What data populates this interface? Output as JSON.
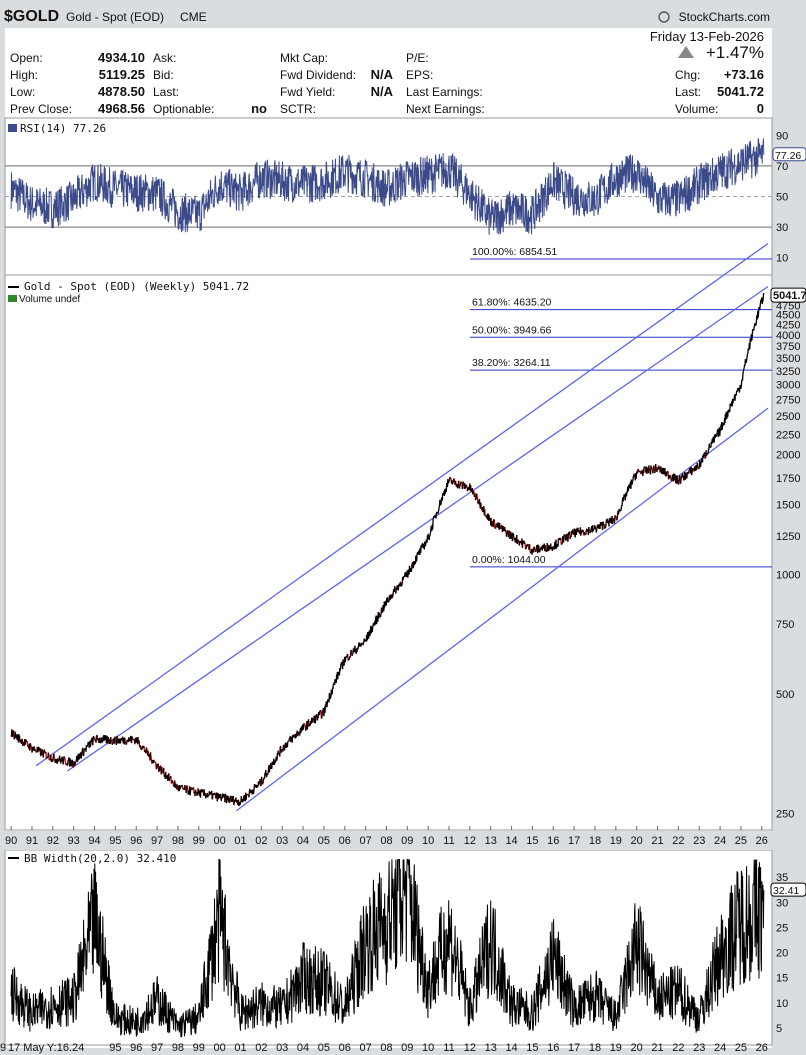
{
  "header": {
    "symbol": "$GOLD",
    "name": "Gold - Spot (EOD)",
    "exchange": "CME",
    "brand": "StockCharts.com",
    "date": "Friday 13-Feb-2026",
    "pct_change": "+1.47%",
    "chg_label": "Chg:",
    "chg_value": "+73.16",
    "last_label": "Last:",
    "last_value": "5041.72",
    "volume_label": "Volume:",
    "volume_value": "0",
    "stats": {
      "open_label": "Open:",
      "open": "4934.10",
      "high_label": "High:",
      "high": "5119.25",
      "low_label": "Low:",
      "low": "4878.50",
      "prev_label": "Prev Close:",
      "prev": "4968.56",
      "ask_label": "Ask:",
      "bid_label": "Bid:",
      "last2_label": "Last:",
      "optionable_label": "Optionable:",
      "optionable": "no",
      "mktcap_label": "Mkt Cap:",
      "fwd_div_label": "Fwd Dividend:",
      "fwd_div": "N/A",
      "fwd_yield_label": "Fwd Yield:",
      "fwd_yield": "N/A",
      "sctr_label": "SCTR:",
      "pe_label": "P/E:",
      "eps_label": "EPS:",
      "last_earn_label": "Last Earnings:",
      "next_earn_label": "Next Earnings:"
    }
  },
  "colors": {
    "price_up": "#000000",
    "price_down": "#cc0000",
    "channel": "#5a66ee",
    "fib": "#2a35c9",
    "indicator": "#3b4a8a",
    "panel_bg": "#ffffff",
    "frame": "#d9dde0"
  },
  "chart_data": [
    {
      "type": "line",
      "title": "RSI(14) 77.26",
      "current": 77.26,
      "ylim": [
        0,
        100
      ],
      "y_ticks": [
        10,
        30,
        50,
        70,
        90
      ],
      "reference_lines": [
        70,
        50,
        30
      ],
      "x": [
        1990,
        1991,
        1992,
        1993,
        1994,
        1995,
        1996,
        1997,
        1998,
        1999,
        2000,
        2001,
        2002,
        2003,
        2004,
        2005,
        2006,
        2007,
        2008,
        2009,
        2010,
        2011,
        2012,
        2013,
        2014,
        2015,
        2016,
        2017,
        2018,
        2019,
        2020,
        2021,
        2022,
        2023,
        2024,
        2025,
        2026.1
      ],
      "values": [
        55,
        45,
        42,
        48,
        60,
        55,
        53,
        52,
        40,
        38,
        58,
        52,
        62,
        60,
        58,
        60,
        66,
        62,
        55,
        62,
        64,
        68,
        52,
        35,
        42,
        38,
        60,
        50,
        48,
        62,
        66,
        48,
        48,
        58,
        66,
        72,
        77.26
      ]
    },
    {
      "type": "line",
      "title": "Gold - Spot (EOD) (Weekly) 5041.72",
      "legend": [
        "Gold - Spot (EOD) (Weekly) 5041.72",
        "Volume undef"
      ],
      "scale": "log",
      "ylim": [
        230,
        5600
      ],
      "y_ticks": [
        250,
        500,
        750,
        1000,
        1250,
        1500,
        1750,
        2000,
        2250,
        2500,
        2750,
        3000,
        3250,
        3500,
        3750,
        4000,
        4250,
        4500,
        4750
      ],
      "last": 5041.72,
      "x_ticks": [
        "90",
        "91",
        "92",
        "93",
        "94",
        "95",
        "96",
        "97",
        "98",
        "99",
        "00",
        "01",
        "02",
        "03",
        "04",
        "05",
        "06",
        "07",
        "08",
        "09",
        "10",
        "11",
        "12",
        "13",
        "14",
        "15",
        "16",
        "17",
        "18",
        "19",
        "20",
        "21",
        "22",
        "23",
        "24",
        "25",
        "26"
      ],
      "x": [
        1990,
        1991,
        1992,
        1993,
        1994,
        1995,
        1996,
        1997,
        1998,
        1999,
        2000,
        2001,
        2002,
        2003,
        2004,
        2005,
        2006,
        2007,
        2008,
        2009,
        2010,
        2011,
        2012,
        2013,
        2014,
        2015,
        2016,
        2017,
        2018,
        2019,
        2020,
        2021,
        2022,
        2023,
        2024,
        2025,
        2026.1
      ],
      "series": [
        {
          "values": [
            400,
            365,
            345,
            335,
            385,
            382,
            384,
            330,
            290,
            282,
            275,
            268,
            300,
            365,
            410,
            450,
            610,
            680,
            850,
            1000,
            1230,
            1720,
            1650,
            1360,
            1250,
            1150,
            1180,
            1270,
            1300,
            1380,
            1800,
            1850,
            1720,
            1880,
            2300,
            3000,
            5041.72
          ]
        }
      ],
      "fib_levels": [
        {
          "label": "100.00%: 6854.51",
          "value": 6854.51
        },
        {
          "label": "61.80%: 4635.20",
          "value": 4635.2
        },
        {
          "label": "50.00%: 3949.66",
          "value": 3949.66
        },
        {
          "label": "38.20%: 3264.11",
          "value": 3264.11
        },
        {
          "label": "0.00%: 1044.00",
          "value": 1044.0
        }
      ],
      "channels": [
        {
          "points": [
            [
              1991.2,
              330
            ],
            [
              2026.3,
              6800
            ]
          ]
        },
        {
          "points": [
            [
              1992.7,
              320
            ],
            [
              2026.3,
              5300
            ]
          ]
        },
        {
          "points": [
            [
              2000.8,
              254
            ],
            [
              2026.3,
              2620
            ]
          ]
        }
      ]
    },
    {
      "type": "line",
      "title": "BB Width(20,2.0) 32.410",
      "current": 32.41,
      "ylim": [
        2,
        40
      ],
      "y_ticks": [
        5,
        10,
        15,
        20,
        25,
        30,
        35
      ],
      "x_ticks": [
        "9",
        "17 May Y:16.24",
        "95",
        "96",
        "97",
        "98",
        "99",
        "00",
        "01",
        "02",
        "03",
        "04",
        "05",
        "06",
        "07",
        "08",
        "09",
        "10",
        "11",
        "12",
        "13",
        "14",
        "15",
        "16",
        "17",
        "18",
        "19",
        "20",
        "21",
        "22",
        "23",
        "24",
        "25",
        "26"
      ],
      "x": [
        1990,
        1991,
        1992,
        1993,
        1994,
        1995,
        1996,
        1997,
        1998,
        1999,
        2000,
        2001,
        2002,
        2003,
        2004,
        2005,
        2006,
        2007,
        2008,
        2009,
        2010,
        2011,
        2012,
        2013,
        2014,
        2015,
        2016,
        2017,
        2018,
        2019,
        2020,
        2021,
        2022,
        2023,
        2024,
        2025,
        2026.1
      ],
      "values": [
        14,
        9,
        11,
        12,
        30,
        8,
        7,
        12,
        6,
        8,
        31,
        9,
        11,
        10,
        17,
        16,
        10,
        25,
        30,
        38,
        15,
        27,
        10,
        26,
        11,
        9,
        22,
        10,
        13,
        8,
        25,
        12,
        14,
        8,
        22,
        30,
        32.41
      ]
    }
  ]
}
